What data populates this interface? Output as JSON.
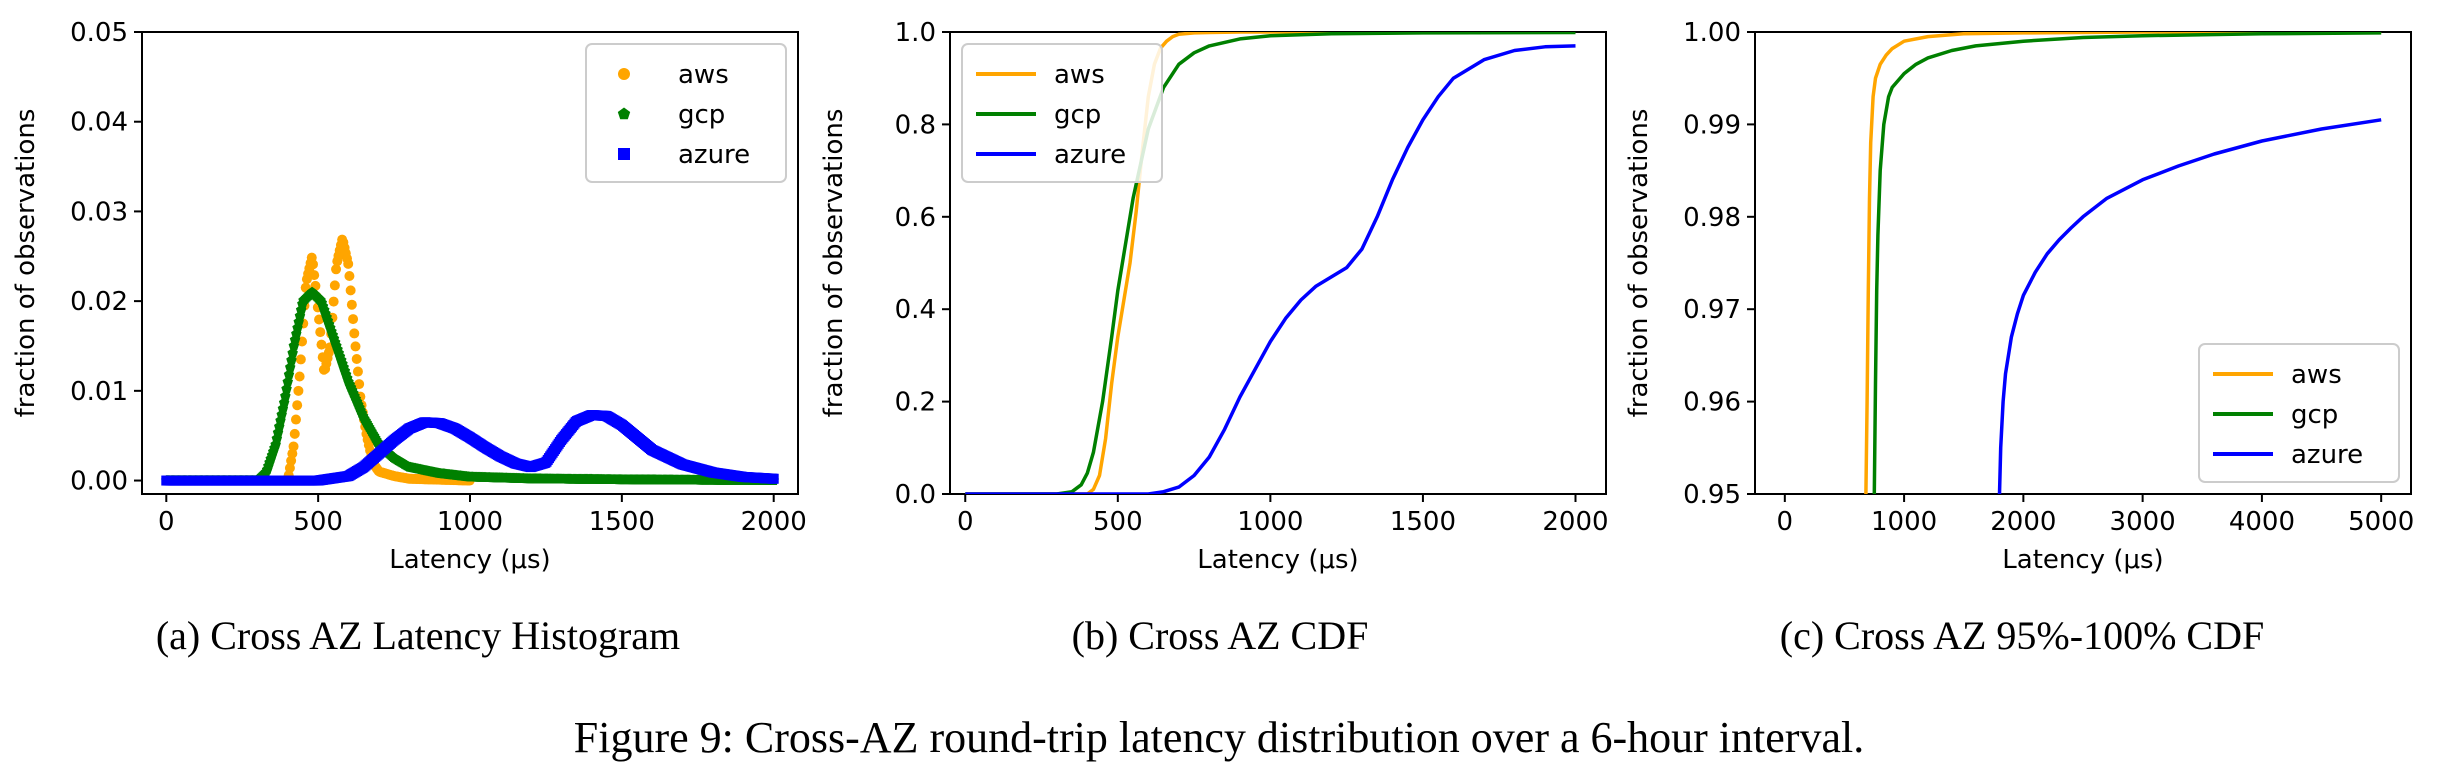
{
  "figure_caption": "Figure 9: Cross-AZ round-trip latency distribution over a 6-hour interval.",
  "colors": {
    "aws": "#ffa500",
    "gcp": "#008000",
    "azure": "#0000ff"
  },
  "chart_data": [
    {
      "id": "a",
      "type": "scatter",
      "caption": "(a) Cross AZ Latency Histogram",
      "xlabel": "Latency (μs)",
      "ylabel": "fraction of observations",
      "xlim": [
        -80,
        2080
      ],
      "ylim": [
        -0.0015,
        0.05
      ],
      "xticks": [
        0,
        500,
        1000,
        1500,
        2000
      ],
      "xtick_labels": [
        "0",
        "500",
        "1000",
        "1500",
        "2000"
      ],
      "yticks": [
        0.0,
        0.01,
        0.02,
        0.03,
        0.04,
        0.05
      ],
      "ytick_labels": [
        "0.00",
        "0.01",
        "0.02",
        "0.03",
        "0.04",
        "0.05"
      ],
      "legend_position": "top-right",
      "series": [
        {
          "name": "aws",
          "marker": "circle",
          "x": [
            400,
            420,
            440,
            460,
            480,
            500,
            520,
            540,
            560,
            580,
            600,
            620,
            640,
            660,
            680,
            700,
            750,
            800,
            900,
            1000
          ],
          "y": [
            0.0,
            0.004,
            0.012,
            0.022,
            0.025,
            0.019,
            0.012,
            0.015,
            0.024,
            0.027,
            0.024,
            0.016,
            0.009,
            0.005,
            0.002,
            0.001,
            0.0005,
            0.0002,
            0.0001,
            0.0
          ]
        },
        {
          "name": "gcp",
          "marker": "pentagon",
          "x": [
            0,
            300,
            330,
            360,
            390,
            420,
            450,
            480,
            510,
            540,
            570,
            600,
            650,
            700,
            750,
            800,
            900,
            1000,
            1200,
            1500,
            2000
          ],
          "y": [
            0.0,
            0.0,
            0.001,
            0.004,
            0.009,
            0.015,
            0.02,
            0.021,
            0.02,
            0.017,
            0.014,
            0.011,
            0.007,
            0.004,
            0.0025,
            0.0015,
            0.0008,
            0.0004,
            0.0002,
            0.0001,
            0.0
          ]
        },
        {
          "name": "azure",
          "marker": "square",
          "x": [
            0,
            500,
            600,
            650,
            700,
            750,
            800,
            850,
            900,
            950,
            1000,
            1050,
            1100,
            1150,
            1200,
            1250,
            1300,
            1350,
            1400,
            1450,
            1500,
            1550,
            1600,
            1700,
            1800,
            1900,
            2000
          ],
          "y": [
            0.0,
            0.0,
            0.0005,
            0.0015,
            0.003,
            0.0045,
            0.0058,
            0.0065,
            0.0064,
            0.0058,
            0.0048,
            0.0037,
            0.0027,
            0.0019,
            0.0015,
            0.002,
            0.0045,
            0.0066,
            0.0073,
            0.0072,
            0.0062,
            0.0048,
            0.0034,
            0.0018,
            0.0009,
            0.0004,
            0.0002
          ]
        }
      ]
    },
    {
      "id": "b",
      "type": "line",
      "caption": "(b) Cross AZ CDF",
      "xlabel": "Latency (μs)",
      "ylabel": "fraction of observations",
      "xlim": [
        -50,
        2100
      ],
      "ylim": [
        0,
        1.0
      ],
      "xticks": [
        0,
        500,
        1000,
        1500,
        2000
      ],
      "xtick_labels": [
        "0",
        "500",
        "1000",
        "1500",
        "2000"
      ],
      "yticks": [
        0.0,
        0.2,
        0.4,
        0.6,
        0.8,
        1.0
      ],
      "ytick_labels": [
        "0.0",
        "0.2",
        "0.4",
        "0.6",
        "0.8",
        "1.0"
      ],
      "legend_position": "top-left",
      "series": [
        {
          "name": "aws",
          "x": [
            0,
            400,
            420,
            440,
            460,
            480,
            500,
            520,
            540,
            560,
            580,
            600,
            620,
            640,
            660,
            680,
            700,
            750,
            800,
            900,
            1000,
            2000
          ],
          "y": [
            0.0,
            0.0,
            0.01,
            0.04,
            0.12,
            0.24,
            0.34,
            0.42,
            0.5,
            0.61,
            0.74,
            0.86,
            0.93,
            0.965,
            0.98,
            0.99,
            0.995,
            0.998,
            0.999,
            1.0,
            1.0,
            1.0
          ]
        },
        {
          "name": "gcp",
          "x": [
            0,
            300,
            350,
            380,
            400,
            420,
            450,
            480,
            500,
            550,
            600,
            650,
            700,
            750,
            800,
            900,
            1000,
            1200,
            1500,
            2000
          ],
          "y": [
            0.0,
            0.0,
            0.005,
            0.02,
            0.045,
            0.09,
            0.2,
            0.34,
            0.44,
            0.64,
            0.79,
            0.88,
            0.93,
            0.955,
            0.97,
            0.985,
            0.992,
            0.996,
            0.998,
            0.999
          ]
        },
        {
          "name": "azure",
          "x": [
            0,
            600,
            650,
            700,
            750,
            800,
            850,
            900,
            950,
            1000,
            1050,
            1100,
            1150,
            1200,
            1250,
            1300,
            1350,
            1400,
            1450,
            1500,
            1550,
            1600,
            1700,
            1800,
            1900,
            2000
          ],
          "y": [
            0.0,
            0.0,
            0.005,
            0.015,
            0.04,
            0.08,
            0.14,
            0.21,
            0.27,
            0.33,
            0.38,
            0.42,
            0.45,
            0.47,
            0.49,
            0.53,
            0.6,
            0.68,
            0.75,
            0.81,
            0.86,
            0.9,
            0.94,
            0.96,
            0.968,
            0.97
          ]
        }
      ]
    },
    {
      "id": "c",
      "type": "line",
      "caption": "(c) Cross AZ 95%-100% CDF",
      "xlabel": "Latency (μs)",
      "ylabel": "fraction of observations",
      "xlim": [
        -250,
        5250
      ],
      "ylim": [
        0.95,
        1.0
      ],
      "xticks": [
        0,
        1000,
        2000,
        3000,
        4000,
        5000
      ],
      "xtick_labels": [
        "0",
        "1000",
        "2000",
        "3000",
        "4000",
        "5000"
      ],
      "yticks": [
        0.95,
        0.96,
        0.97,
        0.98,
        0.99,
        1.0
      ],
      "ytick_labels": [
        "0.95",
        "0.96",
        "0.97",
        "0.98",
        "0.99",
        "1.00"
      ],
      "legend_position": "bottom-right",
      "series": [
        {
          "name": "aws",
          "x": [
            680,
            690,
            700,
            710,
            720,
            740,
            760,
            800,
            850,
            900,
            1000,
            1200,
            1500,
            2000,
            3000,
            5000
          ],
          "y": [
            0.95,
            0.96,
            0.972,
            0.982,
            0.988,
            0.993,
            0.995,
            0.9965,
            0.9975,
            0.9982,
            0.999,
            0.9995,
            0.9998,
            0.9999,
            1.0,
            1.0
          ]
        },
        {
          "name": "gcp",
          "x": [
            750,
            760,
            770,
            780,
            800,
            830,
            870,
            900,
            1000,
            1100,
            1200,
            1400,
            1600,
            2000,
            2500,
            3000,
            4000,
            5000
          ],
          "y": [
            0.95,
            0.962,
            0.972,
            0.978,
            0.985,
            0.99,
            0.993,
            0.994,
            0.9955,
            0.9965,
            0.9972,
            0.998,
            0.9985,
            0.999,
            0.9994,
            0.9996,
            0.9998,
            0.9999
          ]
        },
        {
          "name": "azure",
          "x": [
            1800,
            1810,
            1830,
            1850,
            1900,
            1950,
            2000,
            2100,
            2200,
            2300,
            2400,
            2500,
            2700,
            3000,
            3300,
            3600,
            4000,
            4500,
            5000
          ],
          "y": [
            0.95,
            0.955,
            0.96,
            0.963,
            0.967,
            0.9695,
            0.9715,
            0.974,
            0.976,
            0.9775,
            0.9788,
            0.98,
            0.982,
            0.984,
            0.9855,
            0.9868,
            0.9882,
            0.9895,
            0.9905
          ]
        }
      ]
    }
  ]
}
